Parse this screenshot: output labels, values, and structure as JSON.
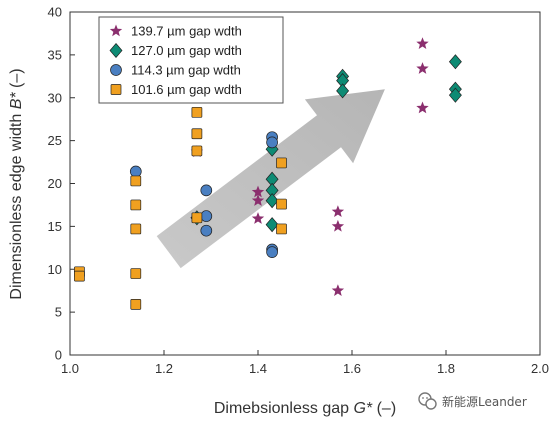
{
  "chart_data": {
    "type": "scatter",
    "xlabel_prefix": "Dimebsionless gap ",
    "xlabel_var": "G*",
    "xlabel_suffix": " (–)",
    "ylabel_prefix": "Dimensionless edge width ",
    "ylabel_var": "B*",
    "ylabel_suffix": " (–)",
    "xlim": [
      1.0,
      2.0
    ],
    "ylim": [
      0,
      40
    ],
    "xticks": [
      "1.0",
      "1.2",
      "1.4",
      "1.6",
      "1.8",
      "2.0"
    ],
    "yticks": [
      "0",
      "5",
      "10",
      "15",
      "20",
      "25",
      "30",
      "35",
      "40"
    ],
    "grid": false,
    "legend_position": "top-left",
    "arrow": {
      "from": [
        1.21,
        12
      ],
      "to": [
        1.67,
        31
      ]
    },
    "series": [
      {
        "name": "139.7 µm gap wdth",
        "marker": "star",
        "color": "#8b2f6e",
        "points": [
          [
            1.27,
            23.7
          ],
          [
            1.4,
            19.0
          ],
          [
            1.4,
            18.0
          ],
          [
            1.4,
            15.9
          ],
          [
            1.57,
            16.7
          ],
          [
            1.57,
            15.0
          ],
          [
            1.57,
            7.5
          ],
          [
            1.75,
            36.3
          ],
          [
            1.75,
            33.4
          ],
          [
            1.75,
            28.8
          ]
        ]
      },
      {
        "name": "127.0 µm gap wdth",
        "marker": "diamond",
        "color": "#0e8b74",
        "points": [
          [
            1.27,
            16.0
          ],
          [
            1.43,
            24.0
          ],
          [
            1.43,
            20.5
          ],
          [
            1.43,
            19.2
          ],
          [
            1.43,
            18.0
          ],
          [
            1.43,
            15.2
          ],
          [
            1.58,
            32.5
          ],
          [
            1.58,
            32.0
          ],
          [
            1.58,
            30.8
          ],
          [
            1.82,
            34.2
          ],
          [
            1.82,
            31.0
          ],
          [
            1.82,
            30.3
          ]
        ]
      },
      {
        "name": "114.3 µm gap wdth",
        "marker": "circle",
        "color": "#4a7fc1",
        "points": [
          [
            1.14,
            21.4
          ],
          [
            1.29,
            19.2
          ],
          [
            1.29,
            16.2
          ],
          [
            1.29,
            14.5
          ],
          [
            1.43,
            25.4
          ],
          [
            1.43,
            24.8
          ],
          [
            1.43,
            12.3
          ],
          [
            1.43,
            12.0
          ]
        ]
      },
      {
        "name": "101.6 µm gap wdth",
        "marker": "square",
        "color": "#f0a020",
        "points": [
          [
            1.02,
            9.7
          ],
          [
            1.02,
            9.2
          ],
          [
            1.14,
            20.3
          ],
          [
            1.14,
            17.5
          ],
          [
            1.14,
            14.7
          ],
          [
            1.14,
            9.5
          ],
          [
            1.14,
            5.9
          ],
          [
            1.27,
            28.3
          ],
          [
            1.27,
            25.8
          ],
          [
            1.27,
            23.8
          ],
          [
            1.27,
            16.0
          ],
          [
            1.45,
            22.4
          ],
          [
            1.45,
            17.6
          ],
          [
            1.45,
            14.7
          ]
        ]
      }
    ]
  },
  "watermark": "新能源Leander",
  "watermark_icon": "wechat-icon"
}
